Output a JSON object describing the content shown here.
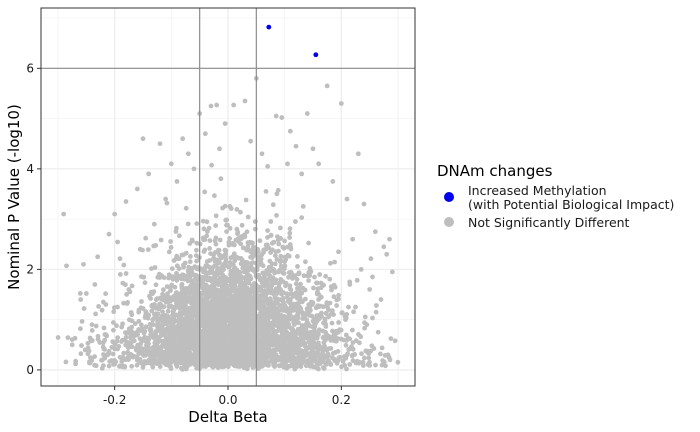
{
  "chart_data": {
    "type": "scatter",
    "xlabel": "Delta Beta",
    "ylabel": "Nominal P Value (-log10)",
    "xlim": [
      -0.33,
      0.33
    ],
    "ylim": [
      -0.32,
      7.2
    ],
    "x_ticks": [
      -0.2,
      0.0,
      0.2
    ],
    "x_tick_labels": [
      "-0.2",
      "0.0",
      "0.2"
    ],
    "y_ticks": [
      0,
      2,
      4,
      6
    ],
    "y_tick_labels": [
      "0",
      "2",
      "4",
      "6"
    ],
    "reference_lines": {
      "vertical": [
        -0.05,
        0.05
      ],
      "horizontal": [
        6
      ]
    },
    "grid": true,
    "legend": {
      "title": "DNAm changes",
      "placement": "right",
      "entries": [
        {
          "line1": "Increased Methylation",
          "line2": "(with Potential Biological Impact)",
          "color": "#0000ee"
        },
        {
          "line1": "Not Significantly Different",
          "line2": "",
          "color": "#bebebe"
        }
      ]
    },
    "series": [
      {
        "name": "Increased Methylation",
        "color": "#0000ee",
        "points": [
          [
            0.072,
            6.82
          ],
          [
            0.155,
            6.27
          ]
        ]
      },
      {
        "name": "Not Significantly Different",
        "color": "#bebebe",
        "points": [
          [
            -0.29,
            3.1
          ],
          [
            -0.285,
            2.07
          ],
          [
            -0.27,
            0.63
          ],
          [
            -0.25,
            1.52
          ],
          [
            -0.255,
            2.1
          ],
          [
            -0.24,
            0.9
          ],
          [
            -0.23,
            2.25
          ],
          [
            -0.22,
            1.35
          ],
          [
            -0.21,
            2.7
          ],
          [
            -0.205,
            0.45
          ],
          [
            -0.2,
            3.1
          ],
          [
            -0.19,
            1.9
          ],
          [
            -0.18,
            3.35
          ],
          [
            -0.17,
            0.85
          ],
          [
            -0.16,
            3.6
          ],
          [
            -0.155,
            2.4
          ],
          [
            -0.15,
            4.6
          ],
          [
            -0.145,
            1.1
          ],
          [
            -0.14,
            3.9
          ],
          [
            -0.13,
            2.9
          ],
          [
            -0.12,
            4.5
          ],
          [
            -0.11,
            3.4
          ],
          [
            -0.1,
            4.1
          ],
          [
            -0.09,
            3.75
          ],
          [
            -0.08,
            4.6
          ],
          [
            -0.07,
            4.3
          ],
          [
            -0.06,
            4.0
          ],
          [
            -0.05,
            5.1
          ],
          [
            -0.04,
            4.7
          ],
          [
            -0.03,
            5.25
          ],
          [
            -0.02,
            5.27
          ],
          [
            -0.015,
            4.4
          ],
          [
            -0.005,
            4.9
          ],
          [
            0.01,
            5.27
          ],
          [
            0.03,
            5.35
          ],
          [
            0.04,
            4.55
          ],
          [
            0.05,
            5.8
          ],
          [
            0.06,
            4.3
          ],
          [
            0.07,
            4.05
          ],
          [
            0.085,
            5.05
          ],
          [
            0.095,
            5.02
          ],
          [
            0.105,
            4.1
          ],
          [
            0.11,
            4.75
          ],
          [
            0.12,
            4.45
          ],
          [
            0.13,
            3.9
          ],
          [
            0.14,
            5.1
          ],
          [
            0.15,
            4.4
          ],
          [
            0.16,
            4.1
          ],
          [
            0.175,
            5.65
          ],
          [
            0.185,
            3.75
          ],
          [
            0.2,
            5.3
          ],
          [
            0.21,
            3.4
          ],
          [
            0.22,
            2.6
          ],
          [
            0.23,
            4.3
          ],
          [
            0.24,
            3.3
          ],
          [
            0.25,
            1.6
          ],
          [
            0.26,
            2.75
          ],
          [
            0.27,
            1.4
          ],
          [
            0.28,
            2.3
          ],
          [
            0.29,
            1.95
          ],
          [
            0.295,
            0.58
          ],
          [
            0.285,
            2.6
          ],
          [
            0.265,
            0.75
          ],
          [
            0.245,
            0.9
          ],
          [
            0.225,
            1.25
          ],
          [
            -0.26,
            1.4
          ],
          [
            -0.235,
            1.7
          ],
          [
            -0.215,
            0.7
          ],
          [
            -0.195,
            1.25
          ],
          [
            -0.175,
            1.6
          ],
          [
            0.255,
            1.85
          ],
          [
            0.275,
            2.45
          ],
          [
            0.235,
            2.0
          ],
          [
            0.215,
            1.7
          ],
          [
            0.195,
            2.35
          ]
        ]
      }
    ]
  }
}
